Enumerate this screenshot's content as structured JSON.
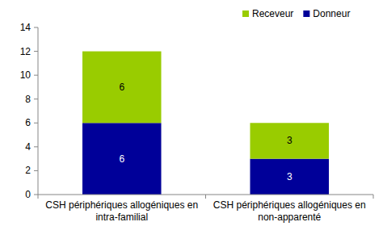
{
  "chart_data": {
    "type": "bar",
    "stacked": true,
    "data_labels": true,
    "legend": "top-right",
    "categories": [
      "CSH périphériques allogéniques en intra-familial",
      "CSH périphériques allogéniques en non-apparenté"
    ],
    "series": [
      {
        "name": "Donneur",
        "color": "#000099",
        "values": [
          6,
          3
        ]
      },
      {
        "name": "Receveur",
        "color": "#99cc00",
        "values": [
          6,
          3
        ]
      }
    ],
    "ylim": [
      0,
      14
    ],
    "yticks": [
      0,
      2,
      4,
      6,
      8,
      10,
      12,
      14
    ],
    "grid": false
  }
}
